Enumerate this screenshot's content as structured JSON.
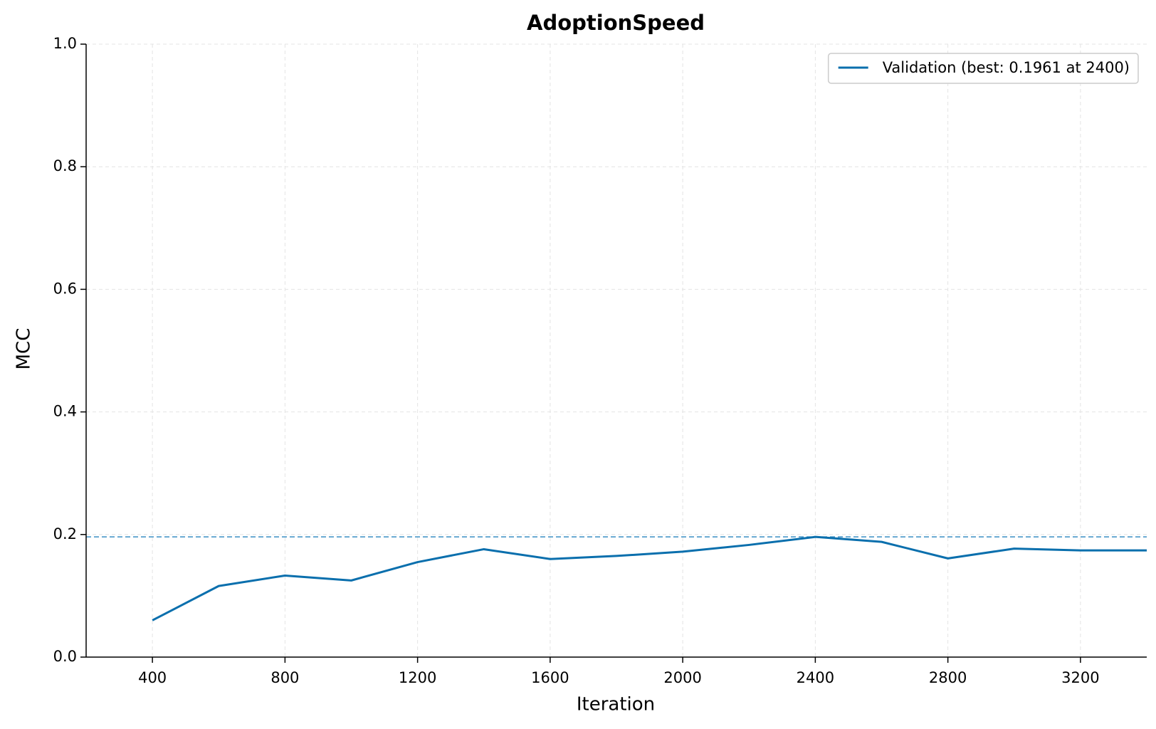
{
  "chart_data": {
    "type": "line",
    "title": "AdoptionSpeed",
    "xlabel": "Iteration",
    "ylabel": "MCC",
    "x": [
      400,
      600,
      800,
      1000,
      1200,
      1400,
      1600,
      1800,
      2000,
      2200,
      2400,
      2600,
      2800,
      3000,
      3200,
      3400
    ],
    "series": [
      {
        "name": "Validation (best: 0.1961 at 2400)",
        "color": "#0a6fad",
        "values": [
          0.06,
          0.116,
          0.133,
          0.125,
          0.155,
          0.176,
          0.16,
          0.165,
          0.172,
          0.183,
          0.1961,
          0.188,
          0.161,
          0.177,
          0.174,
          0.174
        ]
      }
    ],
    "hline": {
      "value": 0.1961,
      "color": "#3a8fc4",
      "style": "dashed"
    },
    "xlim": [
      200,
      3400
    ],
    "xticks": [
      400,
      800,
      1200,
      1600,
      2000,
      2400,
      2800,
      3200
    ],
    "ylim": [
      0,
      1
    ],
    "yticks": [
      {
        "value": 0,
        "label": "0.0"
      },
      0.2,
      0.4,
      0.6,
      0.8,
      {
        "value": 1,
        "label": "1.0"
      }
    ],
    "grid": true,
    "legend": "upper right"
  }
}
